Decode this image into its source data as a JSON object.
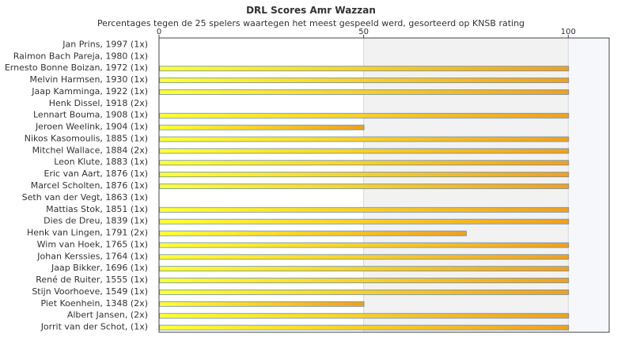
{
  "chart_data": {
    "type": "bar",
    "orientation": "horizontal",
    "title": "DRL Scores Amr Wazzan",
    "subtitle": "Percentages tegen de 25 spelers waartegen het meest gespeeld werd, gesorteerd op KNSB rating",
    "xlim": [
      0,
      110
    ],
    "xticks": [
      0,
      50,
      100
    ],
    "grid": true,
    "categories": [
      "Jan Prins, 1997 (1x)",
      "Raimon Bach Pareja, 1980 (1x)",
      "Ernesto Bonne Boizan, 1972 (1x)",
      "Melvin Harmsen, 1930 (1x)",
      "Jaap Kamminga, 1922 (1x)",
      "Henk Dissel, 1918 (2x)",
      "Lennart Bouma, 1908 (1x)",
      "Jeroen Weelink, 1904 (1x)",
      "Nikos Kasomoulis, 1885 (1x)",
      "Mitchel Wallace, 1884 (2x)",
      "Leon Klute, 1883 (1x)",
      "Eric van Aart, 1876 (1x)",
      "Marcel Scholten, 1876 (1x)",
      "Seth van der Vegt, 1863 (1x)",
      "Mattias Stok, 1851 (1x)",
      "Dies de Dreu, 1839 (1x)",
      "Henk van Lingen, 1791 (2x)",
      "Wim van Hoek, 1765 (1x)",
      "Johan Kerssies, 1764 (1x)",
      "Jaap Bikker, 1696 (1x)",
      "René de Ruiter, 1555 (1x)",
      "Stijn Voorhoeve, 1549 (1x)",
      "Piet Koenhein, 1348 (2x)",
      "Albert Jansen,  (2x)",
      "Jorrit van der Schot,  (1x)"
    ],
    "values": [
      0,
      0,
      100,
      100,
      100,
      0,
      100,
      50,
      100,
      100,
      100,
      100,
      100,
      0,
      100,
      100,
      75,
      100,
      100,
      100,
      100,
      100,
      50,
      100,
      100
    ],
    "colors": {
      "bar_start": "#ffff33",
      "bar_end": "#f0a020",
      "bar_stroke": "#6a8fb0",
      "band": "#f2f2f2",
      "band_outer": "#f5f7fb",
      "axis": "#444444",
      "grid": "#d8d8d8"
    }
  }
}
